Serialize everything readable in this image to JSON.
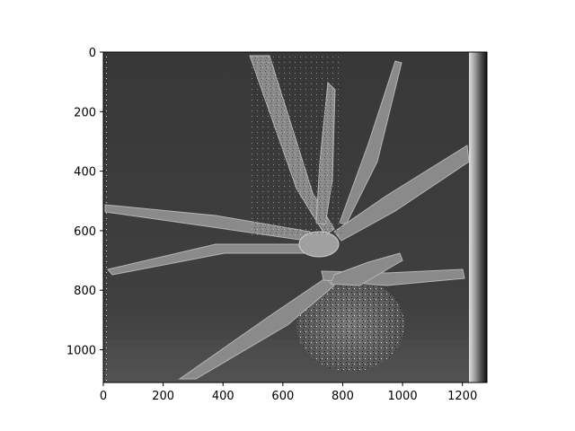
{
  "chart_data": {
    "type": "heatmap",
    "title": "",
    "xlabel": "",
    "ylabel": "",
    "colormap": "gray",
    "image_width": 1282,
    "image_height": 1110,
    "xlim": [
      0,
      1282
    ],
    "ylim": [
      1110,
      0
    ],
    "x_ticks": [
      0,
      200,
      400,
      600,
      800,
      1000,
      1200
    ],
    "y_ticks": [
      0,
      200,
      400,
      600,
      800,
      1000
    ],
    "grid": false,
    "legend": "none",
    "colors": {
      "background": "#3d3d3d",
      "bottom_band": "#4a4a4a",
      "leaf": "#8c8c8c",
      "leaf_edge": "#b0b0b0",
      "right_band_light": "#d8d8d8",
      "right_band_dark": "#1a1a1a"
    }
  }
}
